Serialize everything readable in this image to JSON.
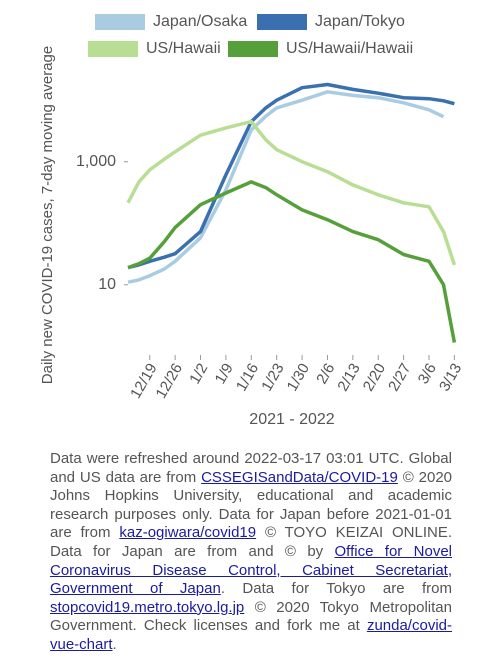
{
  "chart_data": {
    "type": "line",
    "ylabel": "Daily new COVID-19 cases, 7-day moving average",
    "xlabel": "2021 - 2022",
    "log_scale": true,
    "x": [
      "12/13",
      "12/16",
      "12/19",
      "12/23",
      "12/26",
      "1/2",
      "1/9",
      "1/16",
      "1/20",
      "1/23",
      "1/30",
      "2/6",
      "2/13",
      "2/20",
      "2/27",
      "3/6",
      "3/10",
      "3/13"
    ],
    "xlim": [
      "12/13",
      "3/14"
    ],
    "xticks": [
      "12/19",
      "12/26",
      "1/2",
      "1/9",
      "1/16",
      "1/23",
      "1/30",
      "2/6",
      "2/13",
      "2/20",
      "2/27",
      "3/6",
      "3/13"
    ],
    "ylim": [
      0.72,
      23000
    ],
    "yticks": [
      {
        "value": 10,
        "label": "10"
      },
      {
        "value": 1000,
        "label": "1,000"
      }
    ],
    "series": [
      {
        "name": "Japan/Osaka",
        "color": "#a9cce3",
        "values": [
          11,
          12,
          14,
          18,
          24,
          58,
          350,
          3300,
          5500,
          7500,
          10000,
          13700,
          12000,
          11000,
          9100,
          7000,
          5400,
          null
        ]
      },
      {
        "name": "Japan/Tokyo",
        "color": "#3a70b0",
        "values": [
          19,
          21,
          24,
          28,
          32,
          73,
          610,
          4500,
          7500,
          10000,
          16000,
          18000,
          15000,
          13000,
          11000,
          10600,
          9800,
          8800
        ]
      },
      {
        "name": "US/Hawaii",
        "color": "#b8de94",
        "values": [
          215,
          470,
          740,
          1100,
          1450,
          2700,
          3550,
          4500,
          2270,
          1570,
          1000,
          690,
          420,
          290,
          215,
          185,
          73,
          21
        ]
      },
      {
        "name": "US/Hawaii/Hawaii",
        "color": "#55a03a",
        "values": [
          19,
          22,
          27,
          50,
          85,
          200,
          310,
          470,
          380,
          290,
          165,
          114,
          73,
          54,
          31,
          24,
          10,
          1.15
        ]
      }
    ]
  },
  "footer": {
    "segments": [
      {
        "text": "Data were refreshed around 2022-03-17 03:01 UTC. Global and US data are from ",
        "link": false
      },
      {
        "text": "CSSEGISandData/COVID-19",
        "link": true
      },
      {
        "text": " © 2020 Johns Hopkins University, educational and academic research purposes only. Data for Japan before 2021-01-01 are from ",
        "link": false
      },
      {
        "text": "kaz-ogiwara/covid19",
        "link": true
      },
      {
        "text": " © TOYO KEIZAI ONLINE. Data for Japan are from and © by ",
        "link": false
      },
      {
        "text": "Office for Novel Coronavirus Disease Control, Cabinet Secretariat, Government of Japan",
        "link": true
      },
      {
        "text": ". Data for Tokyo are from ",
        "link": false
      },
      {
        "text": "stopcovid19.metro.tokyo.lg.jp",
        "link": true
      },
      {
        "text": " © 2020 Tokyo Metropolitan Government. Check licenses and fork me at ",
        "link": false
      },
      {
        "text": "zunda/covid-vue-chart",
        "link": true
      },
      {
        "text": ".",
        "link": false
      }
    ]
  }
}
